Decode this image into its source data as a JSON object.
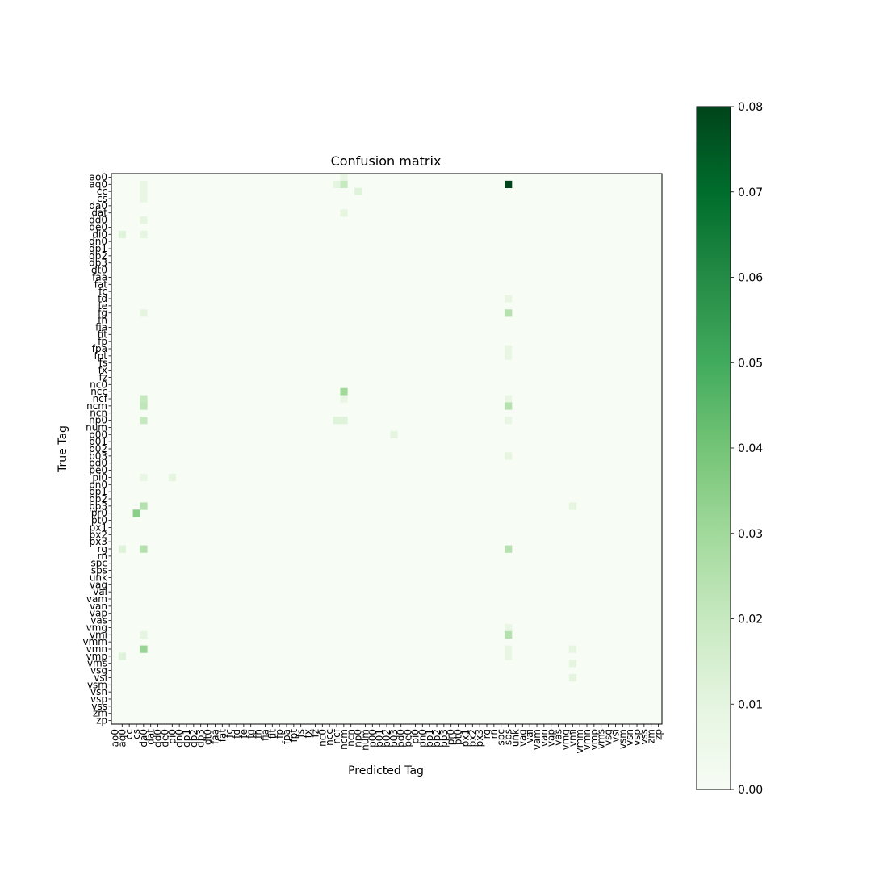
{
  "chart_data": {
    "type": "heatmap",
    "title": "Confusion matrix",
    "xlabel": "Predicted Tag",
    "ylabel": "True Tag",
    "labels": [
      "ao0",
      "aq0",
      "cc",
      "cs",
      "da0",
      "dat",
      "dd0",
      "de0",
      "di0",
      "dn0",
      "dp1",
      "dp2",
      "dp3",
      "dt0",
      "faa",
      "fat",
      "fc",
      "fd",
      "fe",
      "fg",
      "fh",
      "fia",
      "fit",
      "fp",
      "fpa",
      "fpt",
      "fs",
      "fx",
      "fz",
      "nc0",
      "ncc",
      "ncf",
      "ncm",
      "ncn",
      "np0",
      "num",
      "p00",
      "p01",
      "p02",
      "p03",
      "pd0",
      "pe0",
      "pi0",
      "pn0",
      "pp1",
      "pp2",
      "pp3",
      "pr0",
      "pt0",
      "px1",
      "px2",
      "px3",
      "rg",
      "rn",
      "spc",
      "sps",
      "unk",
      "vag",
      "vai",
      "vam",
      "van",
      "vap",
      "vas",
      "vmg",
      "vmi",
      "vmm",
      "vmn",
      "vmp",
      "vms",
      "vsg",
      "vsi",
      "vsm",
      "vsn",
      "vsp",
      "vss",
      "zm",
      "zp"
    ],
    "vmin": 0.0,
    "vmax": 0.08,
    "colormap": "Greens",
    "colorbar_ticks": [
      "0.00",
      "0.01",
      "0.02",
      "0.03",
      "0.04",
      "0.05",
      "0.06",
      "0.07",
      "0.08"
    ],
    "cells": [
      {
        "true": "ao0",
        "pred": "ncm",
        "value": 0.008
      },
      {
        "true": "aq0",
        "pred": "da0",
        "value": 0.008
      },
      {
        "true": "aq0",
        "pred": "ncf",
        "value": 0.01
      },
      {
        "true": "aq0",
        "pred": "ncm",
        "value": 0.02
      },
      {
        "true": "aq0",
        "pred": "sps",
        "value": 0.08
      },
      {
        "true": "cc",
        "pred": "da0",
        "value": 0.008
      },
      {
        "true": "cc",
        "pred": "np0",
        "value": 0.012
      },
      {
        "true": "cs",
        "pred": "da0",
        "value": 0.008
      },
      {
        "true": "dat",
        "pred": "ncm",
        "value": 0.01
      },
      {
        "true": "dd0",
        "pred": "da0",
        "value": 0.01
      },
      {
        "true": "di0",
        "pred": "aq0",
        "value": 0.012
      },
      {
        "true": "di0",
        "pred": "da0",
        "value": 0.01
      },
      {
        "true": "fd",
        "pred": "sps",
        "value": 0.008
      },
      {
        "true": "fg",
        "pred": "da0",
        "value": 0.01
      },
      {
        "true": "fg",
        "pred": "sps",
        "value": 0.025
      },
      {
        "true": "fpa",
        "pred": "sps",
        "value": 0.008
      },
      {
        "true": "fpt",
        "pred": "sps",
        "value": 0.008
      },
      {
        "true": "ncc",
        "pred": "ncm",
        "value": 0.03
      },
      {
        "true": "ncf",
        "pred": "da0",
        "value": 0.02
      },
      {
        "true": "ncf",
        "pred": "ncm",
        "value": 0.008
      },
      {
        "true": "ncf",
        "pred": "sps",
        "value": 0.008
      },
      {
        "true": "ncm",
        "pred": "da0",
        "value": 0.022
      },
      {
        "true": "ncm",
        "pred": "sps",
        "value": 0.025
      },
      {
        "true": "np0",
        "pred": "da0",
        "value": 0.02
      },
      {
        "true": "np0",
        "pred": "ncf",
        "value": 0.012
      },
      {
        "true": "np0",
        "pred": "ncm",
        "value": 0.012
      },
      {
        "true": "np0",
        "pred": "sps",
        "value": 0.008
      },
      {
        "true": "p00",
        "pred": "p03",
        "value": 0.01
      },
      {
        "true": "p03",
        "pred": "sps",
        "value": 0.01
      },
      {
        "true": "pi0",
        "pred": "da0",
        "value": 0.008
      },
      {
        "true": "pi0",
        "pred": "di0",
        "value": 0.01
      },
      {
        "true": "pp3",
        "pred": "da0",
        "value": 0.025
      },
      {
        "true": "pp3",
        "pred": "vmi",
        "value": 0.01
      },
      {
        "true": "pr0",
        "pred": "cs",
        "value": 0.035
      },
      {
        "true": "rg",
        "pred": "aq0",
        "value": 0.012
      },
      {
        "true": "rg",
        "pred": "da0",
        "value": 0.025
      },
      {
        "true": "rg",
        "pred": "sps",
        "value": 0.025
      },
      {
        "true": "vmg",
        "pred": "sps",
        "value": 0.008
      },
      {
        "true": "vmi",
        "pred": "da0",
        "value": 0.01
      },
      {
        "true": "vmi",
        "pred": "sps",
        "value": 0.025
      },
      {
        "true": "vmn",
        "pred": "da0",
        "value": 0.032
      },
      {
        "true": "vmn",
        "pred": "sps",
        "value": 0.008
      },
      {
        "true": "vmn",
        "pred": "vmi",
        "value": 0.01
      },
      {
        "true": "vmp",
        "pred": "aq0",
        "value": 0.012
      },
      {
        "true": "vmp",
        "pred": "sps",
        "value": 0.008
      },
      {
        "true": "vms",
        "pred": "vmi",
        "value": 0.01
      },
      {
        "true": "vsi",
        "pred": "vmi",
        "value": 0.01
      }
    ]
  }
}
